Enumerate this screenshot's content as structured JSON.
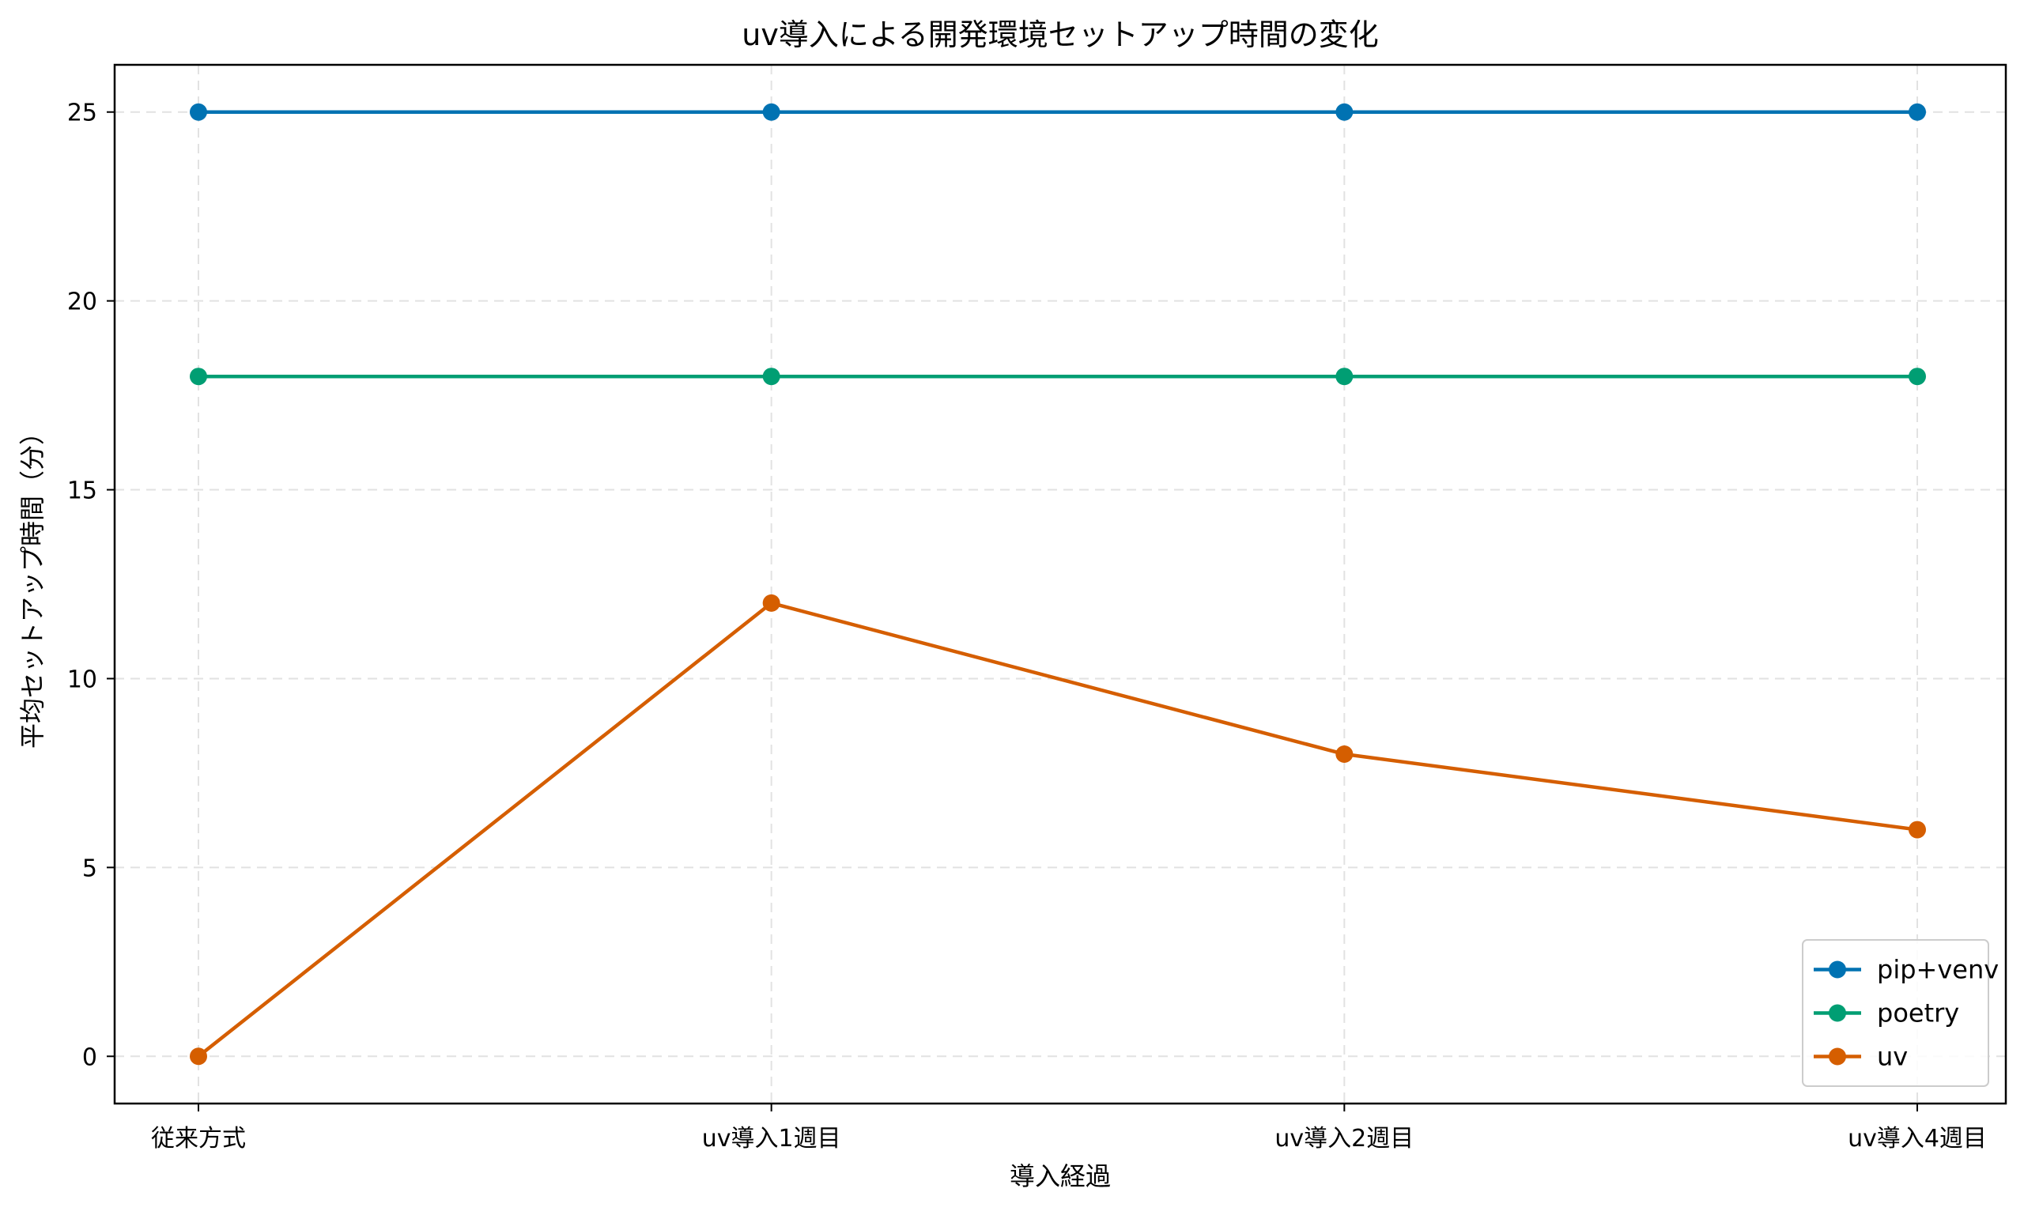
{
  "chart_data": {
    "type": "line",
    "title": "uv導入による開発環境セットアップ時間の変化",
    "xlabel": "導入経過",
    "ylabel": "平均セットアップ時間（分）",
    "categories": [
      "従来方式",
      "uv導入1週目",
      "uv導入2週目",
      "uv導入4週目"
    ],
    "ylim": [
      -1.25,
      26.25
    ],
    "yticks": [
      0,
      5,
      10,
      15,
      20,
      25
    ],
    "grid": true,
    "legend_position": "bottom-right",
    "series": [
      {
        "name": "pip+venv",
        "color": "#0072b2",
        "values": [
          25,
          25,
          25,
          25
        ]
      },
      {
        "name": "poetry",
        "color": "#009e73",
        "values": [
          18,
          18,
          18,
          18
        ]
      },
      {
        "name": "uv",
        "color": "#d55e00",
        "values": [
          0,
          12,
          8,
          6
        ]
      }
    ]
  }
}
